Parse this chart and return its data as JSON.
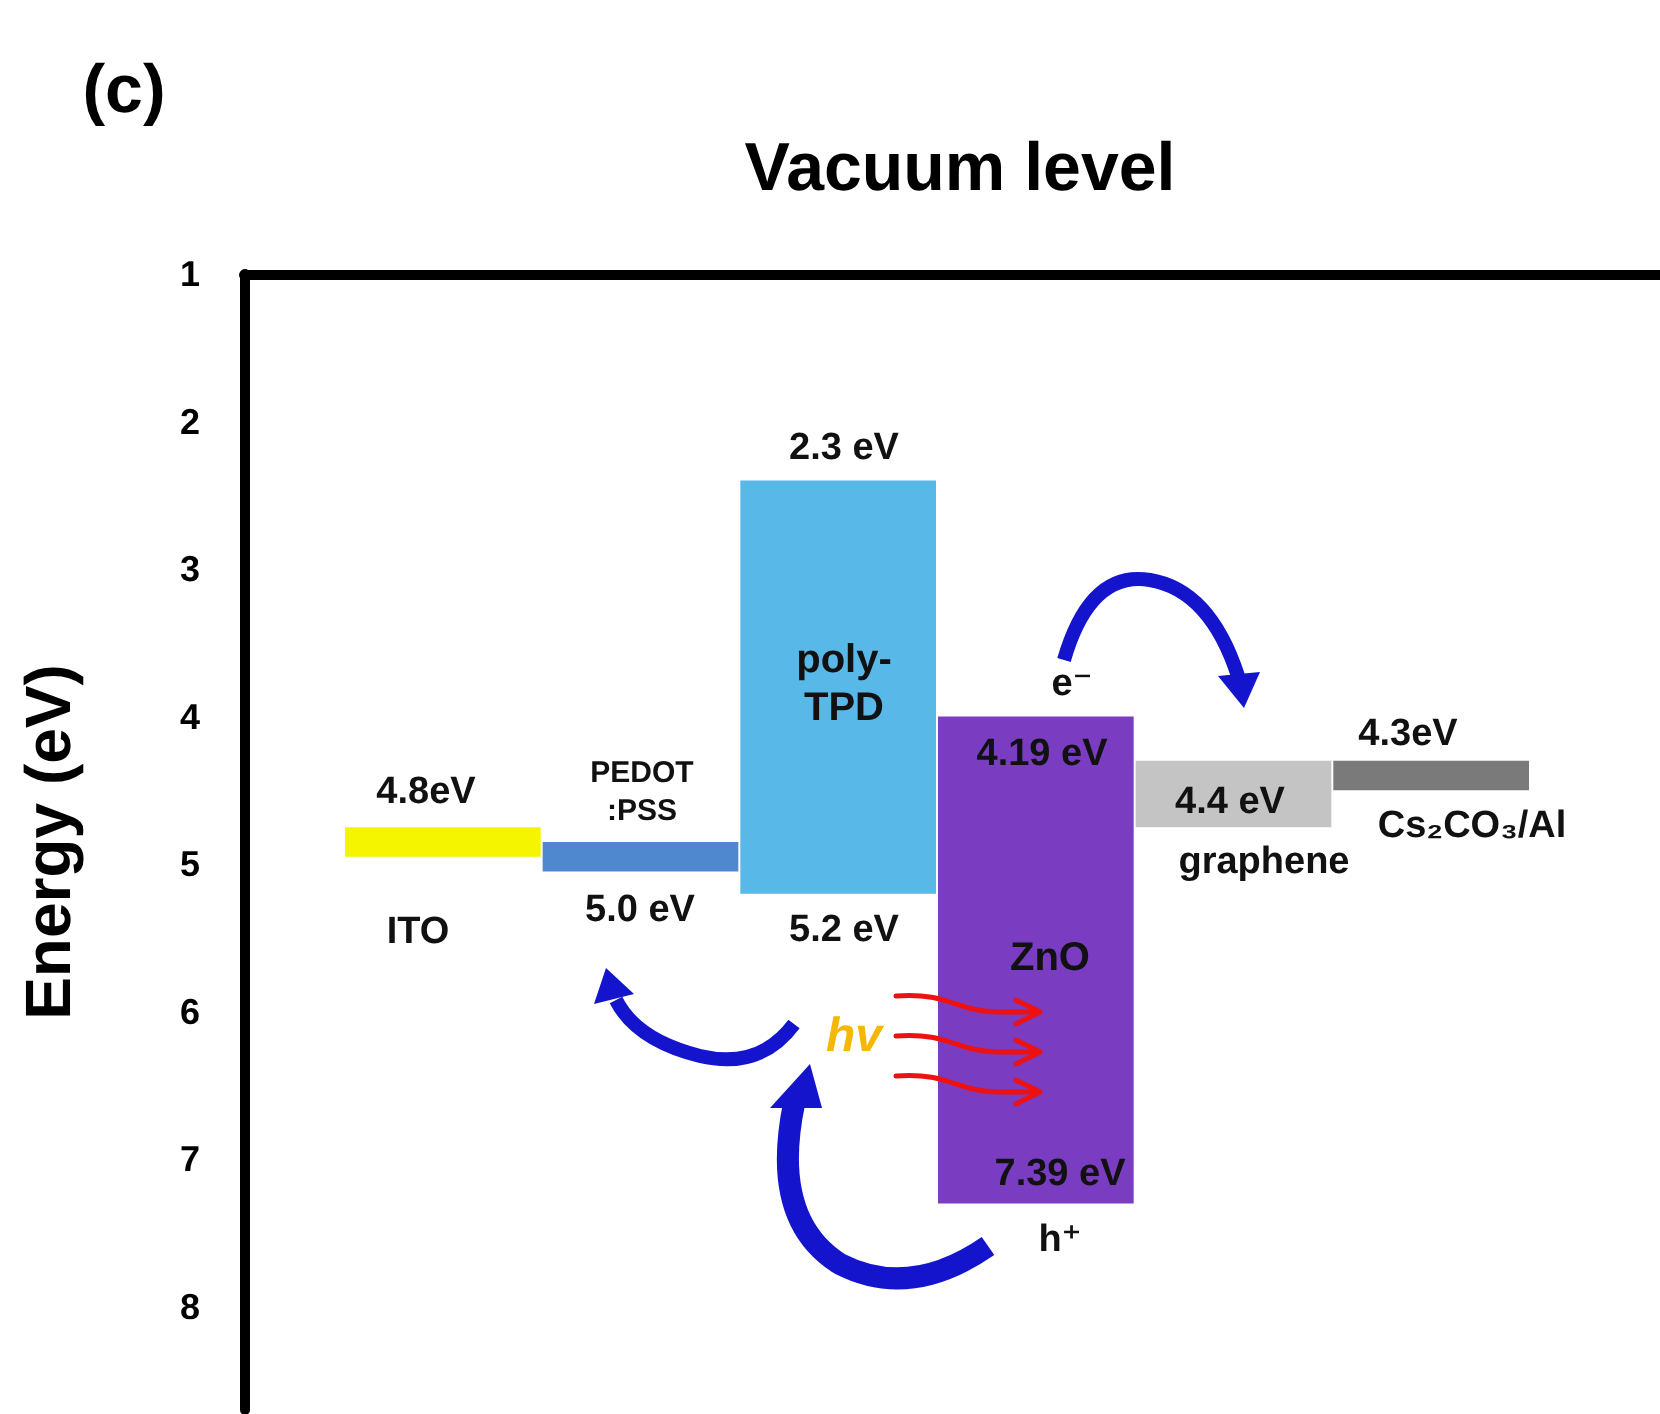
{
  "chart_data": {
    "type": "bar",
    "title": "Vacuum level",
    "ylabel": "Energy (eV)",
    "categories": [
      "ITO",
      "PEDOT\n:PSS",
      "poly-\nTPD",
      "ZnO",
      "graphene",
      "Cs₂CO₃/Al"
    ],
    "base": [
      4.75,
      4.85,
      2.4,
      4.0,
      4.3,
      4.3
    ],
    "values": [
      0.2,
      0.2,
      2.8,
      3.3,
      0.45,
      0.2
    ],
    "colors": [
      "#f5f500",
      "#5088d0",
      "#58b8e8",
      "#7a3cc0",
      "#c4c4c4",
      "#7a7a7a"
    ],
    "ylim": [
      8.7,
      1
    ],
    "yticks": [
      1,
      2,
      3,
      4,
      5,
      6,
      7,
      8
    ],
    "annotations": [
      "(c)",
      "4.8eV",
      "5.0 eV",
      "2.3 eV",
      "5.2 eV",
      "4.19 eV",
      "7.39 eV",
      "4.4 eV",
      "4.3eV",
      "e⁻",
      "hv",
      "h⁺"
    ]
  }
}
